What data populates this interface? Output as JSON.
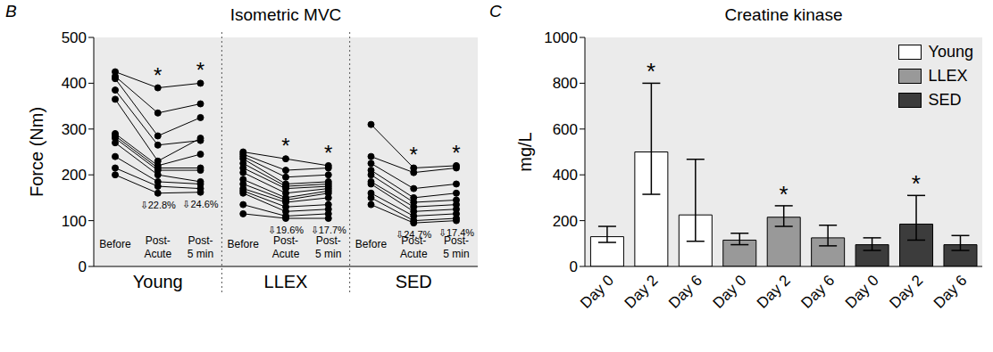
{
  "chart_data": [
    {
      "type": "line",
      "panel_label": "B",
      "title": "Isometric MVC",
      "y_label": "Force (Nm)",
      "ylim": [
        0,
        500
      ],
      "yticks": [
        0,
        100,
        200,
        300,
        400,
        500
      ],
      "grid": false,
      "color": "#000000",
      "marker": "circle",
      "groups": [
        {
          "name": "Young",
          "categories": [
            "Before",
            "Post-Acute",
            "Post-5 min"
          ],
          "annotations": [
            null,
            "⇩22.8%",
            "⇩24.6%"
          ],
          "significance": [
            null,
            "*",
            "*"
          ],
          "subjects": [
            [
              425,
              390,
              400
            ],
            [
              415,
              335,
              355
            ],
            [
              410,
              285,
              325
            ],
            [
              385,
              265,
              275
            ],
            [
              365,
              230,
              280
            ],
            [
              290,
              220,
              245
            ],
            [
              285,
              215,
              215
            ],
            [
              280,
              210,
              210
            ],
            [
              270,
              200,
              185
            ],
            [
              240,
              185,
              180
            ],
            [
              215,
              175,
              170
            ],
            [
              200,
              160,
              162
            ]
          ]
        },
        {
          "name": "LLEX",
          "categories": [
            "Before",
            "Post-Acute",
            "Post-5 min"
          ],
          "annotations": [
            null,
            "⇩19.6%",
            "⇩17.7%"
          ],
          "significance": [
            null,
            "*",
            "*"
          ],
          "subjects": [
            [
              250,
              235,
              220
            ],
            [
              245,
              210,
              215
            ],
            [
              240,
              195,
              200
            ],
            [
              235,
              180,
              185
            ],
            [
              225,
              175,
              180
            ],
            [
              215,
              170,
              175
            ],
            [
              205,
              160,
              170
            ],
            [
              190,
              150,
              165
            ],
            [
              180,
              145,
              160
            ],
            [
              170,
              140,
              150
            ],
            [
              165,
              130,
              135
            ],
            [
              160,
              120,
              125
            ],
            [
              135,
              110,
              115
            ],
            [
              115,
              105,
              105
            ]
          ]
        },
        {
          "name": "SED",
          "categories": [
            "Before",
            "Post-Acute",
            "Post-5 min"
          ],
          "annotations": [
            null,
            "⇩24.7%",
            "⇩17.4%"
          ],
          "significance": [
            null,
            "*",
            "*"
          ],
          "subjects": [
            [
              310,
              215,
              220
            ],
            [
              240,
              205,
              215
            ],
            [
              225,
              170,
              180
            ],
            [
              210,
              150,
              160
            ],
            [
              200,
              140,
              145
            ],
            [
              185,
              130,
              135
            ],
            [
              180,
              120,
              125
            ],
            [
              160,
              110,
              115
            ],
            [
              150,
              100,
              105
            ],
            [
              135,
              95,
              100
            ]
          ]
        }
      ]
    },
    {
      "type": "bar",
      "panel_label": "C",
      "title": "Creatine kinase",
      "y_label": "mg/L",
      "ylim": [
        0,
        1000
      ],
      "yticks": [
        0,
        200,
        400,
        600,
        800,
        1000
      ],
      "grid": false,
      "legend": "upper right",
      "categories": [
        "Day 0",
        "Day 2",
        "Day 6"
      ],
      "series": [
        {
          "name": "Young",
          "color": "#ffffff",
          "values": [
            130,
            500,
            225
          ],
          "error_minus": [
            25,
            185,
            115
          ],
          "error_plus": [
            45,
            300,
            243
          ],
          "significance": [
            null,
            "*",
            null
          ]
        },
        {
          "name": "LLEX",
          "color": "#999999",
          "values": [
            115,
            215,
            125
          ],
          "error_minus": [
            20,
            40,
            35
          ],
          "error_plus": [
            30,
            50,
            55
          ],
          "significance": [
            null,
            "*",
            null
          ]
        },
        {
          "name": "SED",
          "color": "#3c3c3c",
          "values": [
            95,
            185,
            95
          ],
          "error_minus": [
            25,
            70,
            25
          ],
          "error_plus": [
            30,
            125,
            40
          ],
          "significance": [
            null,
            "*",
            null
          ]
        }
      ]
    }
  ]
}
